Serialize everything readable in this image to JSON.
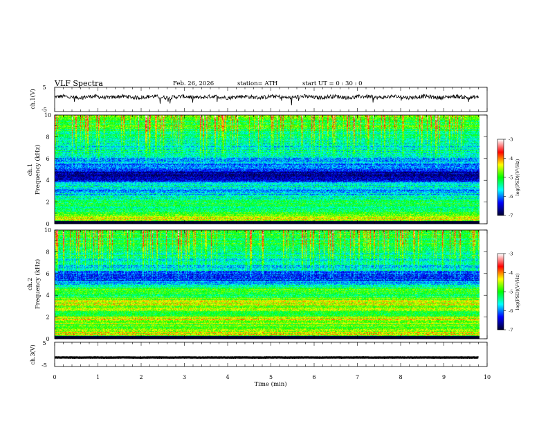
{
  "header": {
    "title": "VLF Spectra",
    "date": "Feb. 26, 2026",
    "station": "station= ATH",
    "start": "start  UT  =   0 : 30 : 0"
  },
  "chart_data": [
    {
      "type": "line",
      "name": "ch1-waveform",
      "ylabel": "ch.1(V)",
      "xlim": [
        0,
        10
      ],
      "ylim": [
        -5,
        5
      ],
      "yticks": [
        "5",
        "-5"
      ],
      "trace_level": 1.0,
      "trace_end": 9.8,
      "color": "#000000"
    },
    {
      "type": "heatmap",
      "name": "ch1-spectrogram",
      "ylabel_top": "ch.1",
      "ylabel": "Frequency  (kHz)",
      "xlim": [
        0,
        10
      ],
      "ylim": [
        0,
        10
      ],
      "yticks": [
        "0",
        "2",
        "4",
        "6",
        "8",
        "10"
      ],
      "data_end": 9.8,
      "colorbar": {
        "label": "log(PSD)(V²/Hz)",
        "range": [
          -7,
          -3
        ],
        "ticks": [
          "-3",
          "-4",
          "-5",
          "-6",
          "-7"
        ],
        "colors": [
          "#ffffff",
          "#ff0000",
          "#ffff00",
          "#00ff00",
          "#00ffff",
          "#0000ff",
          "#000033"
        ]
      },
      "frequency_profile_kHz": [
        [
          0.0,
          -7.0
        ],
        [
          0.3,
          -4.2
        ],
        [
          0.6,
          -4.5
        ],
        [
          1.0,
          -5.0
        ],
        [
          1.5,
          -5.3
        ],
        [
          2.0,
          -5.0
        ],
        [
          2.5,
          -5.6
        ],
        [
          3.0,
          -5.8
        ],
        [
          3.5,
          -5.4
        ],
        [
          4.0,
          -6.4
        ],
        [
          4.5,
          -6.8
        ],
        [
          5.0,
          -6.2
        ],
        [
          5.5,
          -6.0
        ],
        [
          6.0,
          -5.8
        ],
        [
          6.5,
          -5.5
        ],
        [
          7.0,
          -5.6
        ],
        [
          8.0,
          -5.5
        ],
        [
          9.0,
          -5.0
        ],
        [
          10.0,
          -4.9
        ]
      ]
    },
    {
      "type": "heatmap",
      "name": "ch2-spectrogram",
      "ylabel_top": "ch.2",
      "ylabel": "Frequency  (kHz)",
      "xlim": [
        0,
        10
      ],
      "ylim": [
        0,
        10
      ],
      "yticks": [
        "0",
        "2",
        "4",
        "6",
        "8",
        "10"
      ],
      "data_end": 9.8,
      "colorbar": {
        "label": "log(PSD)(V²/Hz)",
        "range": [
          -7,
          -3
        ],
        "ticks": [
          "-3",
          "-4",
          "-5",
          "-6",
          "-7"
        ],
        "colors": [
          "#ffffff",
          "#ff0000",
          "#ffff00",
          "#00ff00",
          "#00ffff",
          "#0000ff",
          "#000033"
        ]
      },
      "frequency_profile_kHz": [
        [
          0.0,
          -7.0
        ],
        [
          0.3,
          -4.3
        ],
        [
          0.8,
          -4.6
        ],
        [
          1.2,
          -4.8
        ],
        [
          1.8,
          -4.4
        ],
        [
          2.2,
          -4.9
        ],
        [
          2.8,
          -4.7
        ],
        [
          3.2,
          -4.5
        ],
        [
          3.6,
          -4.6
        ],
        [
          4.0,
          -5.3
        ],
        [
          4.5,
          -4.8
        ],
        [
          5.0,
          -5.8
        ],
        [
          5.5,
          -6.3
        ],
        [
          6.0,
          -6.1
        ],
        [
          6.5,
          -5.7
        ],
        [
          7.0,
          -5.6
        ],
        [
          8.0,
          -5.4
        ],
        [
          9.0,
          -5.1
        ],
        [
          10.0,
          -5.0
        ]
      ]
    },
    {
      "type": "line",
      "name": "ch3-waveform",
      "ylabel": "ch.3(V)",
      "xlabel": "Time  (min)",
      "xlim": [
        0,
        10
      ],
      "ylim": [
        -5,
        5
      ],
      "yticks": [
        "5",
        "-5"
      ],
      "xticks": [
        "0",
        "1",
        "2",
        "3",
        "4",
        "5",
        "6",
        "7",
        "8",
        "9",
        "10"
      ],
      "trace_level": -1.3,
      "trace_end": 9.8,
      "color": "#000000"
    }
  ]
}
